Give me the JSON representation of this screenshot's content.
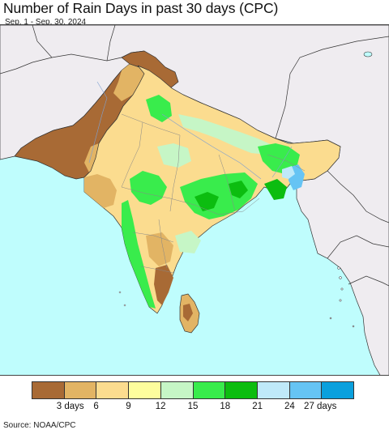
{
  "title": "Number of Rain Days in past 30 days (CPC)",
  "subtitle": "Sep. 1 - Sep. 30, 2024",
  "source": "Source: NOAA/CPC",
  "legend": {
    "swatches": [
      {
        "color": "#a86a35"
      },
      {
        "color": "#e2b464"
      },
      {
        "color": "#fbdc8f"
      },
      {
        "color": "#fdfd9d"
      },
      {
        "color": "#c6f6c6"
      },
      {
        "color": "#39ec4c"
      },
      {
        "color": "#0cbd10"
      },
      {
        "color": "#bfe9f9"
      },
      {
        "color": "#66c4f4"
      },
      {
        "color": "#0aa0dd"
      }
    ],
    "labels": [
      "3 days",
      "6",
      "9",
      "12",
      "15",
      "18",
      "21",
      "24",
      "27 days"
    ]
  },
  "map": {
    "colors": {
      "ocean": "#bffdfd",
      "land_outside": "#efecf0",
      "border": "#333333",
      "state_border": "#888888",
      "river": "#7fa0d0"
    }
  }
}
